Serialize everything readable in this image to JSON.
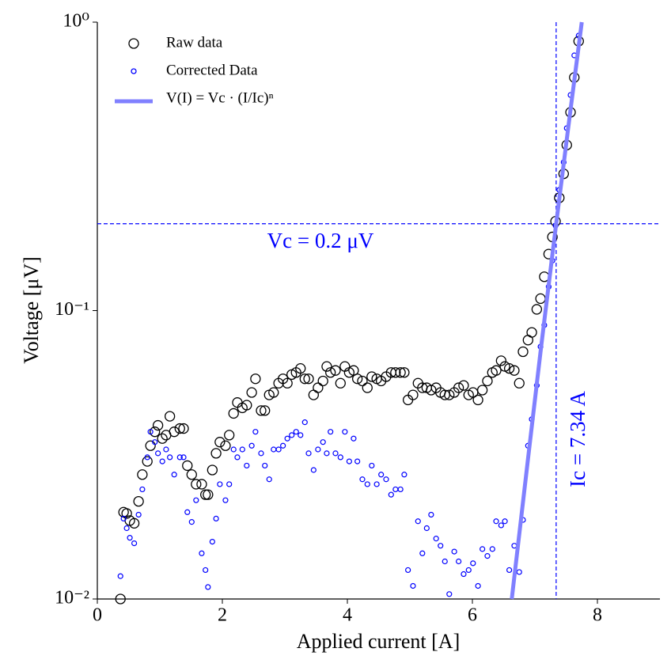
{
  "chart_data": {
    "type": "scatter",
    "xlabel": "Applied current [A]",
    "ylabel": "Voltage [μV]",
    "yscale": "log",
    "xlim": [
      0,
      9
    ],
    "ylim": [
      0.01,
      1
    ],
    "xticks": [
      0,
      2,
      4,
      6,
      8
    ],
    "yticks": [
      {
        "value": 0.01,
        "label": "10⁻²"
      },
      {
        "value": 0.1,
        "label": "10⁻¹"
      },
      {
        "value": 1,
        "label": "10⁰"
      }
    ],
    "legend": "upper left",
    "hline": 0.2,
    "vline": 7.34,
    "line_color": "#0000ff",
    "annotations": [
      {
        "text": "Vc = 0.2 μV"
      },
      {
        "text": "Ic = 7.34 A"
      }
    ],
    "x": [
      0.37,
      0.42,
      0.47,
      0.52,
      0.59,
      0.66,
      0.72,
      0.8,
      0.85,
      0.92,
      0.97,
      1.04,
      1.1,
      1.16,
      1.23,
      1.32,
      1.38,
      1.44,
      1.51,
      1.58,
      1.67,
      1.73,
      1.77,
      1.84,
      1.9,
      1.96,
      2.05,
      2.11,
      2.18,
      2.24,
      2.32,
      2.39,
      2.47,
      2.53,
      2.62,
      2.68,
      2.75,
      2.82,
      2.9,
      2.97,
      3.04,
      3.11,
      3.18,
      3.25,
      3.32,
      3.38,
      3.46,
      3.53,
      3.61,
      3.67,
      3.73,
      3.81,
      3.89,
      3.96,
      4.03,
      4.1,
      4.16,
      4.24,
      4.32,
      4.39,
      4.47,
      4.54,
      4.62,
      4.7,
      4.77,
      4.85,
      4.91,
      4.97,
      5.05,
      5.13,
      5.2,
      5.27,
      5.34,
      5.42,
      5.49,
      5.56,
      5.63,
      5.71,
      5.78,
      5.86,
      5.94,
      6.01,
      6.09,
      6.16,
      6.24,
      6.32,
      6.38,
      6.46,
      6.52,
      6.59,
      6.67,
      6.75,
      6.81,
      6.89,
      6.95,
      7.03,
      7.09,
      7.15,
      7.22,
      7.28,
      7.33,
      7.39,
      7.46,
      7.51,
      7.57,
      7.63,
      7.7
    ],
    "series": [
      {
        "name": "Raw data",
        "color": "#000000",
        "marker": "large",
        "values": [
          0.01,
          0.02,
          0.0198,
          0.0187,
          0.0183,
          0.0218,
          0.027,
          0.03,
          0.034,
          0.038,
          0.04,
          0.036,
          0.037,
          0.043,
          0.038,
          0.039,
          0.039,
          0.029,
          0.027,
          0.025,
          0.025,
          0.023,
          0.023,
          0.028,
          0.032,
          0.035,
          0.034,
          0.037,
          0.044,
          0.048,
          0.046,
          0.047,
          0.052,
          0.058,
          0.045,
          0.045,
          0.051,
          0.052,
          0.056,
          0.058,
          0.056,
          0.06,
          0.061,
          0.063,
          0.058,
          0.058,
          0.051,
          0.054,
          0.057,
          0.064,
          0.061,
          0.062,
          0.056,
          0.064,
          0.061,
          0.062,
          0.058,
          0.057,
          0.054,
          0.059,
          0.058,
          0.057,
          0.059,
          0.061,
          0.061,
          0.061,
          0.061,
          0.049,
          0.051,
          0.056,
          0.054,
          0.054,
          0.053,
          0.054,
          0.052,
          0.051,
          0.051,
          0.052,
          0.054,
          0.055,
          0.051,
          0.052,
          0.049,
          0.053,
          0.057,
          0.061,
          0.062,
          0.067,
          0.064,
          0.063,
          0.062,
          0.056,
          0.072,
          0.079,
          0.084,
          0.101,
          0.11,
          0.131,
          0.157,
          0.18,
          0.204,
          0.246,
          0.298,
          0.375,
          0.487,
          0.643,
          0.859
        ]
      },
      {
        "name": "Corrected Data",
        "color": "#0000ff",
        "marker": "small",
        "values": [
          0.012,
          0.019,
          0.0176,
          0.0163,
          0.0156,
          0.0196,
          0.024,
          0.031,
          0.038,
          0.035,
          0.032,
          0.03,
          0.033,
          0.031,
          0.027,
          0.031,
          0.031,
          0.02,
          0.0185,
          0.022,
          0.0144,
          0.0126,
          0.011,
          0.0158,
          0.019,
          0.025,
          0.022,
          0.025,
          0.033,
          0.031,
          0.033,
          0.029,
          0.034,
          0.038,
          0.032,
          0.029,
          0.026,
          0.033,
          0.033,
          0.034,
          0.036,
          0.037,
          0.038,
          0.037,
          0.041,
          0.032,
          0.028,
          0.033,
          0.035,
          0.032,
          0.038,
          0.032,
          0.031,
          0.038,
          0.03,
          0.036,
          0.03,
          0.026,
          0.025,
          0.029,
          0.025,
          0.027,
          0.026,
          0.023,
          0.024,
          0.024,
          0.027,
          0.0126,
          0.0111,
          0.0186,
          0.0144,
          0.0176,
          0.0196,
          0.0162,
          0.0153,
          0.0135,
          0.0104,
          0.0146,
          0.0135,
          0.0122,
          0.0126,
          0.0133,
          0.0111,
          0.0149,
          0.0141,
          0.0149,
          0.0186,
          0.018,
          0.0186,
          0.0126,
          0.0153,
          0.0124,
          0.0188,
          0.034,
          0.042,
          0.055,
          0.075,
          0.089,
          0.121,
          0.149,
          0.197,
          0.262,
          0.327,
          0.429,
          0.559,
          0.767,
          0.898
        ]
      },
      {
        "name": "V(I) = Vc · (I/Ic)ⁿ",
        "color": "#8080ff",
        "marker": "line",
        "x": [
          6.63,
          6.9,
          7.1,
          7.34,
          7.55,
          7.75
        ],
        "values": [
          0.01,
          0.032,
          0.075,
          0.2,
          0.46,
          1.0
        ]
      }
    ]
  }
}
